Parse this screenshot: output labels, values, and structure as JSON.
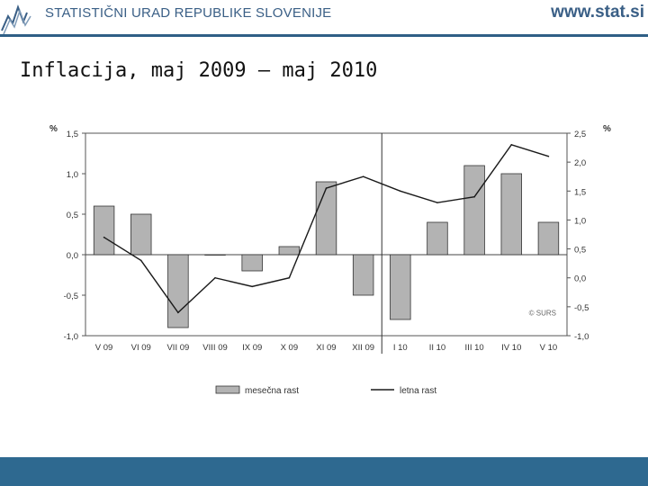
{
  "header": {
    "org_name": "STATISTIČNI URAD REPUBLIKE SLOVENIJE",
    "site_url": "www.stat.si",
    "logo_icon": "surs-logo-icon",
    "accent_color": "#2f5f86"
  },
  "title": "Inflacija, maj 2009 – maj 2010",
  "footer": {
    "color": "#2e6990"
  },
  "chart_data": {
    "type": "bar",
    "categories": [
      "V 09",
      "VI 09",
      "VII 09",
      "VIII 09",
      "IX 09",
      "X 09",
      "XI 09",
      "XII 09",
      "I 10",
      "II 10",
      "III 10",
      "IV 10",
      "V 10"
    ],
    "series": [
      {
        "name": "mesečna rast",
        "type": "bar",
        "axis": "left",
        "color": "#b3b3b3",
        "values": [
          0.6,
          0.5,
          -0.9,
          0.0,
          -0.2,
          0.1,
          0.9,
          -0.5,
          -0.8,
          0.4,
          1.1,
          1.0,
          0.4
        ]
      },
      {
        "name": "letna rast",
        "type": "line",
        "axis": "right",
        "color": "#1a1a1a",
        "values": [
          0.7,
          0.3,
          -0.6,
          0.0,
          -0.15,
          0.0,
          1.55,
          1.75,
          1.5,
          1.3,
          1.4,
          2.3,
          2.1
        ]
      }
    ],
    "y_left": {
      "label": "%",
      "ylim": [
        -1.0,
        1.5
      ],
      "ticks": [
        "1,5",
        "1,0",
        "0,5",
        "0,0",
        "-0,5",
        "-1,0"
      ]
    },
    "y_right": {
      "label": "%",
      "ylim": [
        -1.0,
        2.5
      ],
      "ticks": [
        "2,5",
        "2,0",
        "1,5",
        "1,0",
        "0,5",
        "0,0",
        "-0,5",
        "-1,0"
      ]
    },
    "annotation": "© SURS",
    "legend_position": "bottom",
    "grid": false,
    "divider_after_category": "XII 09"
  }
}
